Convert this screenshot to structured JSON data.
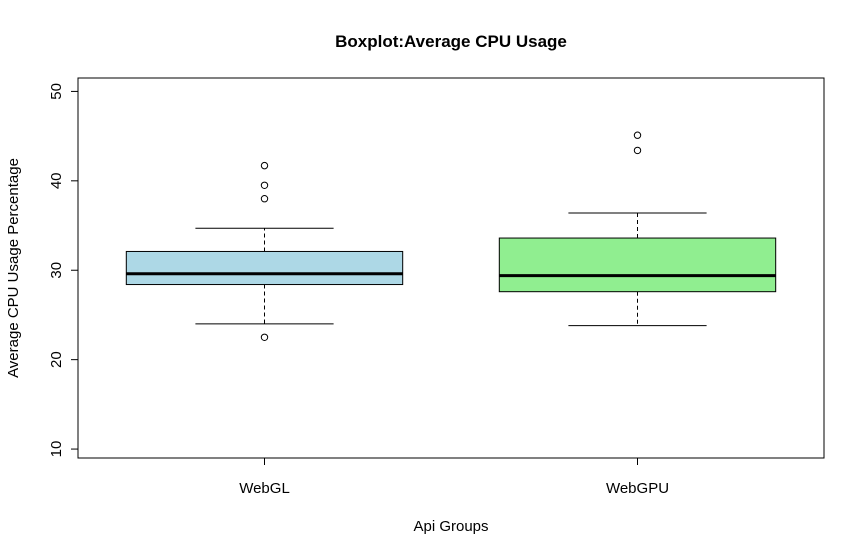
{
  "chart_data": {
    "type": "boxplot",
    "title": "Boxplot:Average CPU Usage",
    "xlabel": "Api Groups",
    "ylabel": "Average CPU Usage Percentage",
    "ylim": [
      9,
      51.5
    ],
    "yticks": [
      10,
      20,
      30,
      40,
      50
    ],
    "grid": false,
    "categories": [
      "WebGL",
      "WebGPU"
    ],
    "series": [
      {
        "category": "WebGL",
        "color": "#add8e6",
        "whisker_low": 24.0,
        "q1": 28.4,
        "median": 29.6,
        "q3": 32.1,
        "whisker_high": 34.7,
        "outliers": [
          22.5,
          38.0,
          39.5,
          41.7
        ]
      },
      {
        "category": "WebGPU",
        "color": "#90ee90",
        "whisker_low": 23.8,
        "q1": 27.6,
        "median": 29.4,
        "q3": 33.6,
        "whisker_high": 36.4,
        "outliers": [
          43.4,
          45.1
        ]
      }
    ]
  }
}
